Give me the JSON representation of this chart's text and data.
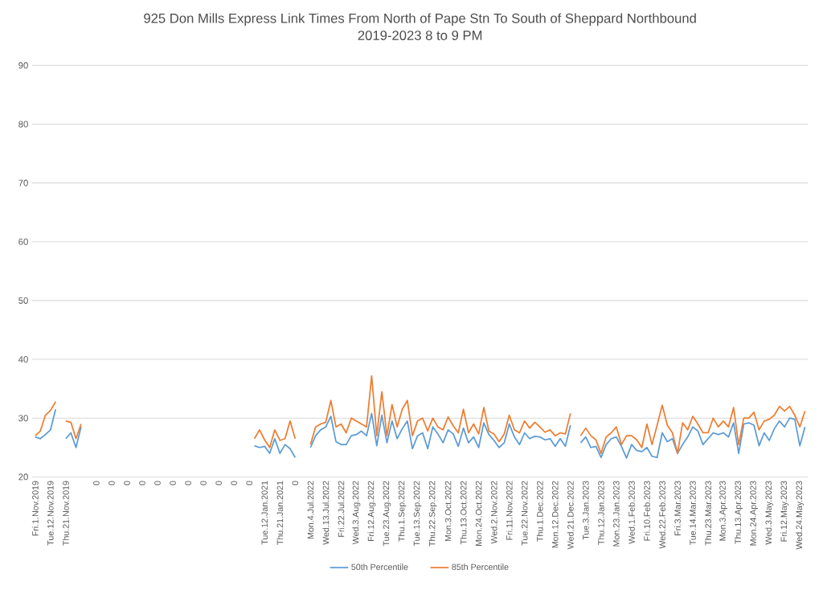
{
  "chart_data": {
    "type": "line",
    "title": "925 Don Mills Express Link Times From North of Pape Stn To South of Sheppard Northbound",
    "subtitle": "2019-2023 8 to 9 PM",
    "categories": [
      "Fri.1.Nov.2019",
      null,
      null,
      "Tue.12.Nov.2019",
      null,
      null,
      "Thu.21.Nov.2019",
      null,
      null,
      null,
      null,
      null,
      "0",
      null,
      null,
      "0",
      null,
      null,
      "0",
      null,
      null,
      "0",
      null,
      null,
      "0",
      null,
      null,
      "0",
      null,
      null,
      "0",
      null,
      null,
      "0",
      null,
      null,
      "0",
      null,
      null,
      "0",
      null,
      null,
      "0",
      null,
      null,
      "Tue.12.Jan.2021",
      null,
      null,
      "Thu.21.Jan.2021",
      null,
      null,
      "0",
      null,
      null,
      "Mon.4.Jul.2022",
      null,
      null,
      "Wed.13.Jul.2022",
      null,
      null,
      "Fri.22.Jul.2022",
      null,
      null,
      "Wed.3.Aug.2022",
      null,
      null,
      "Fri.12.Aug.2022",
      null,
      null,
      "Tue.23.Aug.2022",
      null,
      null,
      "Thu.1.Sep.2022",
      null,
      null,
      "Tue.13.Sep.2022",
      null,
      null,
      "Thu.22.Sep.2022",
      null,
      null,
      "Mon.3.Oct.2022",
      null,
      null,
      "Thu.13.Oct.2022",
      null,
      null,
      "Mon.24.Oct.2022",
      null,
      null,
      "Wed.2.Nov.2022",
      null,
      null,
      "Fri.11.Nov.2022",
      null,
      null,
      "Tue.22.Nov.2022",
      null,
      null,
      "Thu.1.Dec.2022",
      null,
      null,
      "Mon.12.Dec.2022",
      null,
      null,
      "Wed.21.Dec.2022",
      null,
      null,
      "Tue.3.Jan.2023",
      null,
      null,
      "Thu.12.Jan.2023",
      null,
      null,
      "Mon.23.Jan.2023",
      null,
      null,
      "Wed.1.Feb.2023",
      null,
      null,
      "Fri.10.Feb.2023",
      null,
      null,
      "Wed.22.Feb.2023",
      null,
      null,
      "Fri.3.Mar.2023",
      null,
      null,
      "Tue.14.Mar.2023",
      null,
      null,
      "Thu.23.Mar.2023",
      null,
      null,
      "Mon.3.Apr.2023",
      null,
      null,
      "Thu.13.Apr.2023",
      null,
      null,
      "Mon.24.Apr.2023",
      null,
      null,
      "Wed.3.May.2023",
      null,
      null,
      "Fri.12.May.2023",
      null,
      null,
      "Wed.24.May.2023",
      null
    ],
    "series": [
      {
        "name": "50th Percentile",
        "color": "#5b9bd5",
        "values": [
          26.8,
          26.5,
          27.2,
          28.0,
          31.5,
          null,
          26.5,
          27.5,
          25.0,
          28.5,
          null,
          null,
          null,
          null,
          null,
          null,
          null,
          null,
          null,
          null,
          null,
          null,
          null,
          null,
          null,
          null,
          null,
          null,
          null,
          null,
          null,
          null,
          null,
          null,
          null,
          null,
          null,
          null,
          null,
          null,
          null,
          null,
          null,
          25.3,
          25.0,
          25.2,
          24.0,
          26.5,
          24.0,
          25.5,
          24.8,
          23.3,
          null,
          null,
          25.0,
          27,
          28,
          28.5,
          30.3,
          26,
          25.5,
          25.5,
          27,
          27.2,
          27.8,
          27,
          30.8,
          25.3,
          30.5,
          25.8,
          29.5,
          26.5,
          28.2,
          29.5,
          24.8,
          27,
          27.5,
          24.8,
          28.5,
          27.3,
          25.8,
          28,
          27.3,
          25.2,
          28.3,
          25.8,
          26.8,
          25,
          29.2,
          27.2,
          26.2,
          25,
          25.8,
          29,
          26.8,
          25.5,
          27.5,
          26.5,
          26.9,
          26.8,
          26.3,
          26.5,
          25.2,
          26.5,
          25.2,
          28.8,
          null,
          25.8,
          26.8,
          25,
          25.2,
          23.3,
          25.5,
          26.5,
          26.8,
          25.2,
          23.2,
          25.5,
          24.5,
          24.3,
          25,
          23.5,
          23.3,
          27.5,
          26,
          26.5,
          24,
          25.5,
          26.8,
          28.5,
          27.8,
          25.5,
          26.5,
          27.5,
          27.2,
          27.5,
          26.8,
          29.2,
          24,
          29,
          29.2,
          28.8,
          25.3,
          27.5,
          26.2,
          28.2,
          29.5,
          28.5,
          30,
          29.8,
          25.3,
          28.5
        ]
      },
      {
        "name": "85th Percentile",
        "color": "#ed7d31",
        "values": [
          27.0,
          27.8,
          30.5,
          31.3,
          32.8,
          null,
          29.5,
          29.3,
          26.5,
          29.0,
          null,
          null,
          null,
          null,
          null,
          null,
          null,
          null,
          null,
          null,
          null,
          null,
          null,
          null,
          null,
          null,
          null,
          null,
          null,
          null,
          null,
          null,
          null,
          null,
          null,
          null,
          null,
          null,
          null,
          null,
          null,
          null,
          null,
          26.5,
          28.0,
          26.3,
          25.0,
          28.0,
          26.2,
          26.5,
          29.5,
          26.5,
          null,
          null,
          25.5,
          28.5,
          29,
          29.3,
          33.0,
          28.5,
          29,
          27.5,
          30,
          29.5,
          29,
          28.5,
          37.2,
          27,
          34.5,
          27,
          32.3,
          28.5,
          31.5,
          33,
          27,
          29.5,
          30,
          27.8,
          30,
          28.5,
          28,
          30.2,
          28.7,
          27.5,
          31.5,
          27.5,
          29,
          27.3,
          31.8,
          27.8,
          27.3,
          26,
          27.3,
          30.5,
          28,
          27.5,
          29.5,
          28.3,
          29.3,
          28.5,
          27.6,
          28,
          27,
          27.5,
          27.3,
          30.8,
          null,
          27,
          28.3,
          27,
          26.3,
          24,
          26.8,
          27.5,
          28.5,
          25.5,
          27,
          27,
          26.3,
          25,
          29,
          25.5,
          28.8,
          32.2,
          28.8,
          27.5,
          24,
          29.2,
          28,
          30.3,
          29,
          27.5,
          27.5,
          30,
          28.5,
          29.5,
          28.5,
          31.8,
          25.5,
          30,
          30,
          31,
          28,
          29.5,
          29.8,
          30.5,
          32,
          31.2,
          32,
          30.5,
          28.5,
          31.2
        ]
      }
    ],
    "ylim": [
      20,
      90
    ],
    "yticks": [
      20,
      30,
      40,
      50,
      60,
      70,
      80,
      90
    ],
    "grid": "y",
    "legend": "bottom"
  }
}
